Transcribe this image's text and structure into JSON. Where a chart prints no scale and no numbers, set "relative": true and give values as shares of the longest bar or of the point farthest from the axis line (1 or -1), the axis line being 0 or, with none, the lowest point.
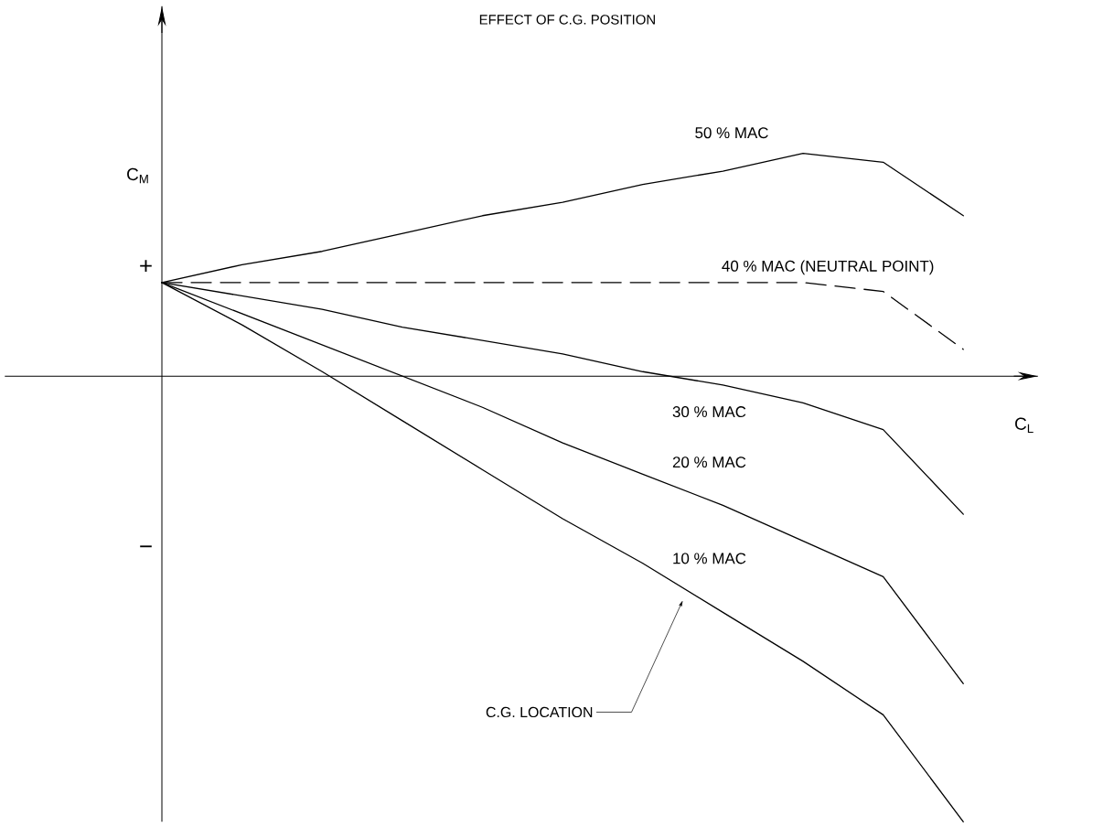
{
  "chart_data": {
    "type": "line",
    "title": "EFFECT OF C.G. POSITION",
    "xlabel": "C$_{L}$",
    "ylabel": "C$_{M}$",
    "relative": true,
    "marker": "none",
    "line_style": "solid",
    "categories": [
      null,
      null,
      null,
      null,
      null,
      null,
      null,
      null,
      null,
      null,
      null
    ],
    "series": [
      {
        "name": "50 % MAC",
        "color": "#000000",
        "values": [
          0.21,
          0.25,
          0.28,
          0.32,
          0.36,
          0.39,
          0.43,
          0.46,
          0.5,
          0.48,
          0.36
        ]
      },
      {
        "name": "40 % MAC (NEUTRAL POINT)",
        "color": "#000000",
        "line_style": "dashed",
        "values": [
          0.21,
          0.21,
          0.21,
          0.21,
          0.21,
          0.21,
          0.21,
          0.21,
          0.21,
          0.19,
          0.06
        ]
      },
      {
        "name": "30 % MAC",
        "color": "#000000",
        "values": [
          0.21,
          0.18,
          0.15,
          0.11,
          0.08,
          0.05,
          0.01,
          -0.02,
          -0.06,
          -0.12,
          -0.31
        ]
      },
      {
        "name": "20 % MAC",
        "color": "#000000",
        "values": [
          0.21,
          0.14,
          0.07,
          0.0,
          -0.07,
          -0.15,
          -0.22,
          -0.29,
          -0.37,
          -0.45,
          -0.69
        ]
      },
      {
        "name": "10 % MAC",
        "color": "#000000",
        "values": [
          0.21,
          0.115,
          0.01,
          -0.1,
          -0.21,
          -0.32,
          -0.42,
          -0.53,
          -0.64,
          -0.76,
          -1.0
        ]
      }
    ],
    "annotations": [
      "+",
      "−",
      "C.G. LOCATION"
    ]
  }
}
